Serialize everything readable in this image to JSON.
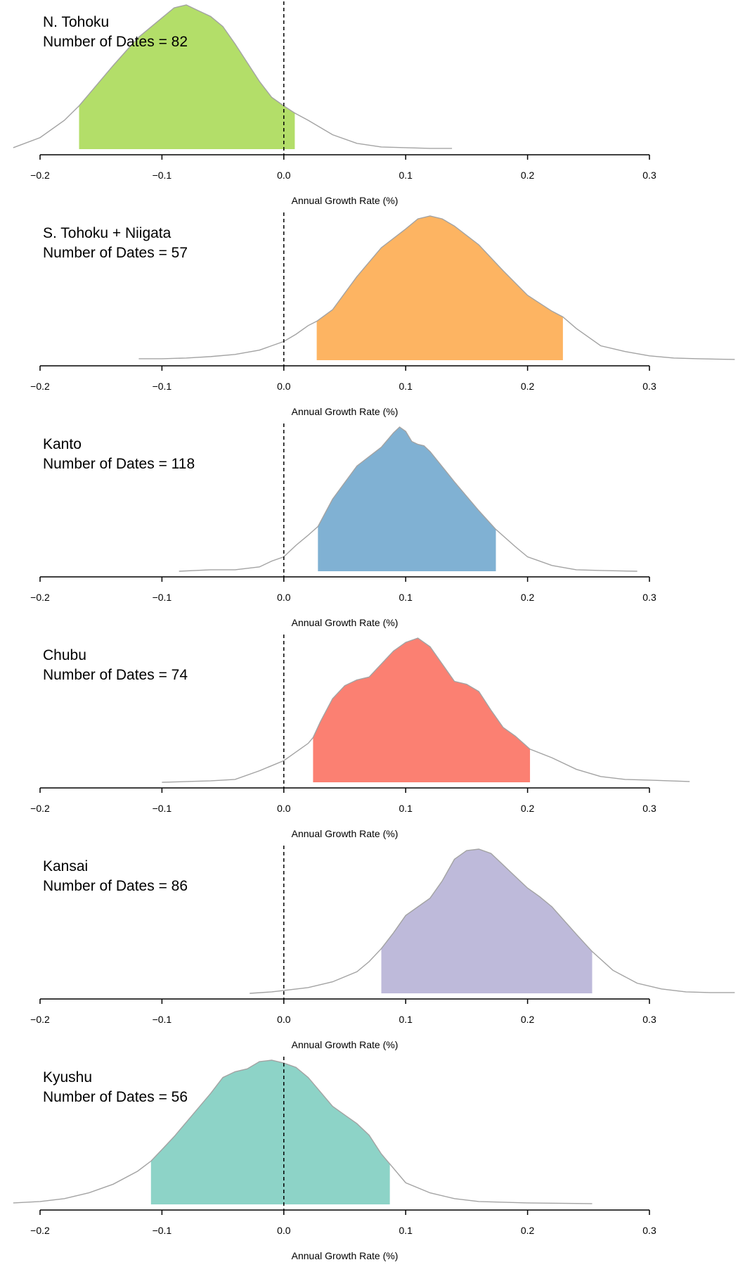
{
  "chart_data": [
    {
      "type": "area",
      "region": "N. Tohoku",
      "dates_label": "Number of Dates = 82",
      "xlabel": "Annual Growth Rate (%)",
      "xlim": [
        -0.2,
        0.3
      ],
      "xticks": [
        -0.2,
        -0.1,
        0.0,
        0.1,
        0.2,
        0.3
      ],
      "xtick_labels": [
        "−0.2",
        "−0.1",
        "0.0",
        "0.1",
        "0.2",
        "0.3"
      ],
      "reference_line_x": 0.0,
      "fill_color": "#b3de69",
      "interval": [
        -0.168,
        0.009
      ],
      "density": {
        "x": [
          -0.222,
          -0.2,
          -0.18,
          -0.168,
          -0.16,
          -0.14,
          -0.12,
          -0.1,
          -0.09,
          -0.08,
          -0.07,
          -0.06,
          -0.05,
          -0.04,
          -0.03,
          -0.02,
          -0.01,
          0.0,
          0.009,
          0.02,
          0.04,
          0.06,
          0.08,
          0.1,
          0.12,
          0.138
        ],
        "y": [
          0.01,
          0.08,
          0.2,
          0.3,
          0.38,
          0.58,
          0.77,
          0.91,
          0.98,
          1.0,
          0.96,
          0.92,
          0.85,
          0.73,
          0.6,
          0.47,
          0.36,
          0.3,
          0.25,
          0.2,
          0.1,
          0.04,
          0.015,
          0.01,
          0.005,
          0.005
        ]
      }
    },
    {
      "type": "area",
      "region": "S. Tohoku + Niigata",
      "dates_label": "Number of Dates = 57",
      "xlabel": "Annual Growth Rate (%)",
      "xlim": [
        -0.2,
        0.3
      ],
      "xticks": [
        -0.2,
        -0.1,
        0.0,
        0.1,
        0.2,
        0.3
      ],
      "xtick_labels": [
        "−0.2",
        "−0.1",
        "0.0",
        "0.1",
        "0.2",
        "0.3"
      ],
      "reference_line_x": 0.0,
      "fill_color": "#fdb462",
      "interval": [
        0.027,
        0.229
      ],
      "density": {
        "x": [
          -0.119,
          -0.1,
          -0.08,
          -0.06,
          -0.04,
          -0.02,
          0.0,
          0.01,
          0.02,
          0.027,
          0.04,
          0.06,
          0.08,
          0.1,
          0.11,
          0.12,
          0.13,
          0.14,
          0.16,
          0.18,
          0.2,
          0.22,
          0.229,
          0.24,
          0.26,
          0.28,
          0.3,
          0.32,
          0.34,
          0.37
        ],
        "y": [
          0.01,
          0.01,
          0.015,
          0.025,
          0.04,
          0.07,
          0.13,
          0.18,
          0.24,
          0.27,
          0.35,
          0.58,
          0.78,
          0.91,
          0.98,
          1.0,
          0.98,
          0.93,
          0.8,
          0.62,
          0.45,
          0.34,
          0.3,
          0.22,
          0.1,
          0.06,
          0.03,
          0.015,
          0.01,
          0.005
        ]
      }
    },
    {
      "type": "area",
      "region": "Kanto",
      "dates_label": "Number of Dates = 118",
      "xlabel": "Annual Growth Rate (%)",
      "xlim": [
        -0.2,
        0.3
      ],
      "xticks": [
        -0.2,
        -0.1,
        0.0,
        0.1,
        0.2,
        0.3
      ],
      "xtick_labels": [
        "−0.2",
        "−0.1",
        "0.0",
        "0.1",
        "0.2",
        "0.3"
      ],
      "reference_line_x": 0.0,
      "fill_color": "#80b1d3",
      "interval": [
        0.028,
        0.174
      ],
      "density": {
        "x": [
          -0.086,
          -0.06,
          -0.04,
          -0.02,
          -0.01,
          0.0,
          0.01,
          0.02,
          0.028,
          0.04,
          0.06,
          0.08,
          0.09,
          0.095,
          0.1,
          0.105,
          0.11,
          0.115,
          0.12,
          0.14,
          0.16,
          0.174,
          0.19,
          0.2,
          0.22,
          0.24,
          0.26,
          0.29
        ],
        "y": [
          0.0,
          0.01,
          0.01,
          0.03,
          0.07,
          0.1,
          0.18,
          0.25,
          0.31,
          0.5,
          0.73,
          0.86,
          0.96,
          1.0,
          0.97,
          0.9,
          0.88,
          0.87,
          0.83,
          0.62,
          0.42,
          0.29,
          0.17,
          0.1,
          0.04,
          0.01,
          0.005,
          0.0
        ]
      }
    },
    {
      "type": "area",
      "region": "Chubu",
      "dates_label": "Number of Dates = 74",
      "xlabel": "Annual Growth Rate (%)",
      "xlim": [
        -0.2,
        0.3
      ],
      "xticks": [
        -0.2,
        -0.1,
        0.0,
        0.1,
        0.2,
        0.3
      ],
      "xtick_labels": [
        "−0.2",
        "−0.1",
        "0.0",
        "0.1",
        "0.2",
        "0.3"
      ],
      "reference_line_x": 0.0,
      "fill_color": "#fb8072",
      "interval": [
        0.024,
        0.202
      ],
      "density": {
        "x": [
          -0.1,
          -0.08,
          -0.06,
          -0.04,
          -0.02,
          0.0,
          0.01,
          0.02,
          0.024,
          0.03,
          0.04,
          0.05,
          0.06,
          0.07,
          0.08,
          0.09,
          0.1,
          0.11,
          0.12,
          0.13,
          0.14,
          0.15,
          0.16,
          0.17,
          0.18,
          0.19,
          0.202,
          0.22,
          0.24,
          0.26,
          0.28,
          0.3,
          0.333
        ],
        "y": [
          0.0,
          0.005,
          0.01,
          0.02,
          0.08,
          0.15,
          0.21,
          0.27,
          0.31,
          0.42,
          0.58,
          0.67,
          0.71,
          0.73,
          0.82,
          0.91,
          0.97,
          1.0,
          0.94,
          0.82,
          0.7,
          0.68,
          0.63,
          0.5,
          0.38,
          0.32,
          0.23,
          0.17,
          0.09,
          0.04,
          0.02,
          0.015,
          0.005
        ]
      }
    },
    {
      "type": "area",
      "region": "Kansai",
      "dates_label": "Number of Dates = 86",
      "xlabel": "Annual Growth Rate (%)",
      "xlim": [
        -0.2,
        0.3
      ],
      "xticks": [
        -0.2,
        -0.1,
        0.0,
        0.1,
        0.2,
        0.3
      ],
      "xtick_labels": [
        "−0.2",
        "−0.1",
        "0.0",
        "0.1",
        "0.2",
        "0.3"
      ],
      "reference_line_x": 0.0,
      "fill_color": "#bebada",
      "interval": [
        0.08,
        0.253
      ],
      "density": {
        "x": [
          -0.028,
          -0.01,
          0.0,
          0.02,
          0.04,
          0.06,
          0.07,
          0.08,
          0.09,
          0.1,
          0.11,
          0.12,
          0.13,
          0.14,
          0.15,
          0.16,
          0.17,
          0.18,
          0.19,
          0.2,
          0.21,
          0.22,
          0.24,
          0.253,
          0.27,
          0.29,
          0.31,
          0.33,
          0.35,
          0.37
        ],
        "y": [
          0.0,
          0.01,
          0.02,
          0.04,
          0.08,
          0.15,
          0.22,
          0.31,
          0.42,
          0.54,
          0.6,
          0.66,
          0.78,
          0.93,
          0.99,
          1.0,
          0.97,
          0.89,
          0.81,
          0.73,
          0.67,
          0.6,
          0.41,
          0.29,
          0.16,
          0.07,
          0.03,
          0.01,
          0.005,
          0.005
        ]
      }
    },
    {
      "type": "area",
      "region": "Kyushu",
      "dates_label": "Number of Dates = 56",
      "xlabel": "Annual Growth Rate (%)",
      "xlim": [
        -0.2,
        0.3
      ],
      "xticks": [
        -0.2,
        -0.1,
        0.0,
        0.1,
        0.2,
        0.3
      ],
      "xtick_labels": [
        "−0.2",
        "−0.1",
        "0.0",
        "0.1",
        "0.2",
        "0.3"
      ],
      "reference_line_x": 0.0,
      "fill_color": "#8dd3c7",
      "interval": [
        -0.109,
        0.087
      ],
      "density": {
        "x": [
          -0.222,
          -0.2,
          -0.18,
          -0.16,
          -0.14,
          -0.12,
          -0.109,
          -0.1,
          -0.09,
          -0.08,
          -0.07,
          -0.06,
          -0.05,
          -0.04,
          -0.03,
          -0.02,
          -0.01,
          0.0,
          0.01,
          0.02,
          0.03,
          0.04,
          0.05,
          0.06,
          0.07,
          0.08,
          0.087,
          0.1,
          0.12,
          0.14,
          0.16,
          0.2,
          0.253
        ],
        "y": [
          0.01,
          0.02,
          0.04,
          0.08,
          0.14,
          0.23,
          0.3,
          0.38,
          0.47,
          0.57,
          0.67,
          0.77,
          0.88,
          0.92,
          0.94,
          0.99,
          1.0,
          0.98,
          0.95,
          0.88,
          0.78,
          0.68,
          0.62,
          0.56,
          0.48,
          0.35,
          0.28,
          0.15,
          0.08,
          0.04,
          0.02,
          0.01,
          0.005
        ]
      }
    }
  ]
}
